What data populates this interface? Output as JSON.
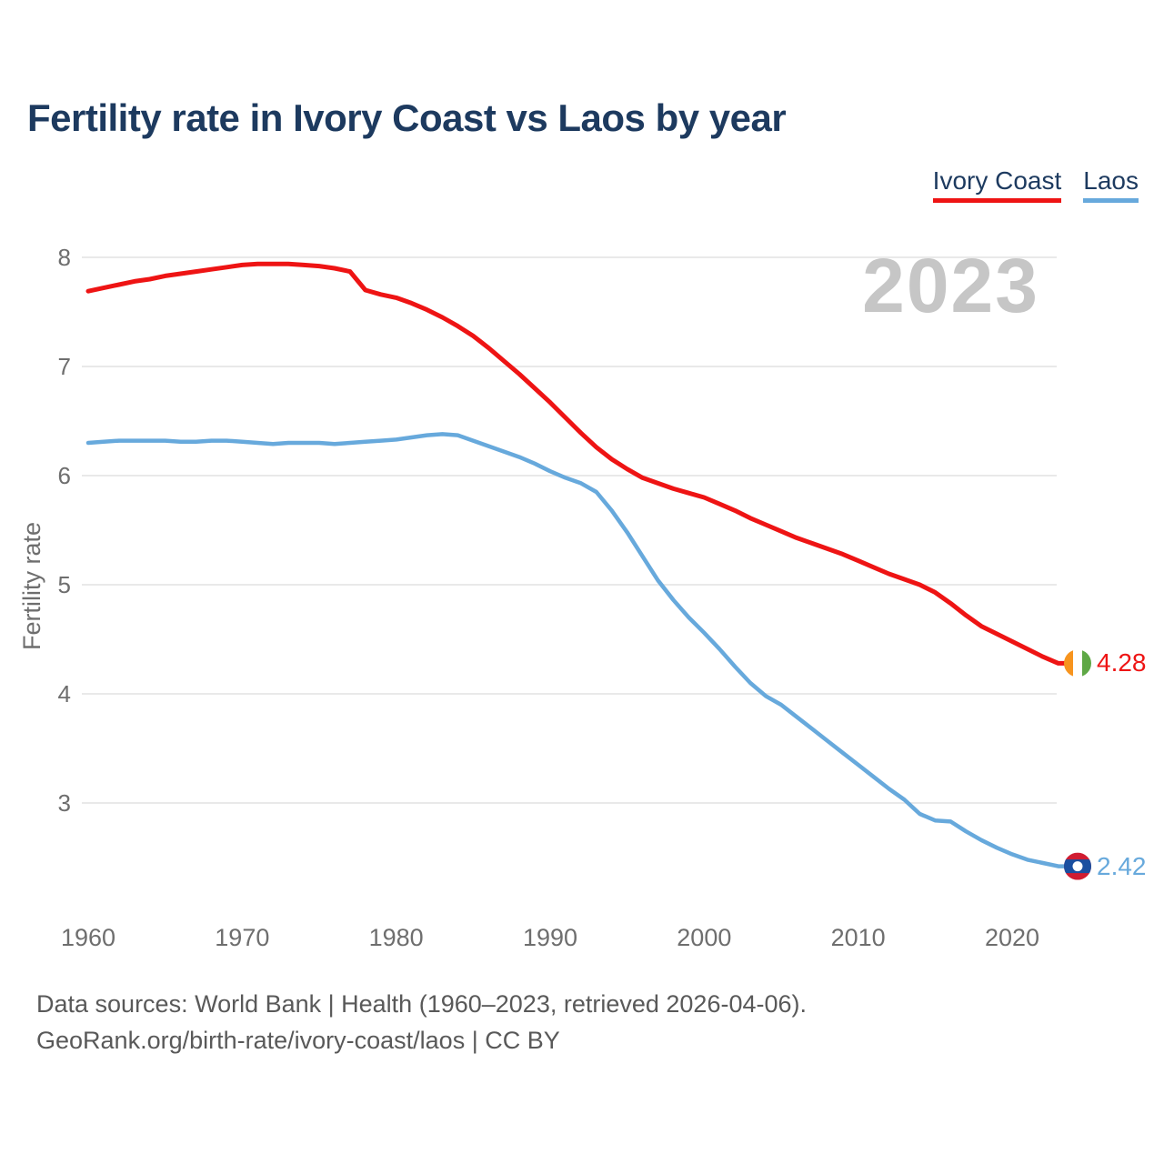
{
  "header": {
    "title": "Fertility rate in Ivory Coast vs Laos by year"
  },
  "legend": [
    {
      "label": "Ivory Coast",
      "color": "#ee1414"
    },
    {
      "label": "Laos",
      "color": "#67a9dc"
    }
  ],
  "watermark": "2023",
  "chart_data": {
    "type": "line",
    "title": "Fertility rate in Ivory Coast vs Laos by year",
    "xlabel": "",
    "ylabel": "Fertility rate",
    "x_ticks": [
      1960,
      1970,
      1980,
      1990,
      2000,
      2010,
      2020
    ],
    "y_ticks": [
      3,
      4,
      5,
      6,
      7,
      8
    ],
    "xlim": [
      1959.5,
      2024.5
    ],
    "ylim": [
      2.2,
      8.2
    ],
    "grid": "horizontal",
    "legend_position": "top-right",
    "x": [
      1960,
      1961,
      1962,
      1963,
      1964,
      1965,
      1966,
      1967,
      1968,
      1969,
      1970,
      1971,
      1972,
      1973,
      1974,
      1975,
      1976,
      1977,
      1978,
      1979,
      1980,
      1981,
      1982,
      1983,
      1984,
      1985,
      1986,
      1987,
      1988,
      1989,
      1990,
      1991,
      1992,
      1993,
      1994,
      1995,
      1996,
      1997,
      1998,
      1999,
      2000,
      2001,
      2002,
      2003,
      2004,
      2005,
      2006,
      2007,
      2008,
      2009,
      2010,
      2011,
      2012,
      2013,
      2014,
      2015,
      2016,
      2017,
      2018,
      2019,
      2020,
      2021,
      2022,
      2023
    ],
    "series": [
      {
        "name": "Ivory Coast",
        "color": "#ee1414",
        "flag": "ivory-coast",
        "end_label": "4.28",
        "end_value": 4.28,
        "values": [
          7.69,
          7.72,
          7.75,
          7.78,
          7.8,
          7.83,
          7.85,
          7.87,
          7.89,
          7.91,
          7.93,
          7.94,
          7.94,
          7.94,
          7.93,
          7.92,
          7.9,
          7.87,
          7.7,
          7.66,
          7.63,
          7.58,
          7.52,
          7.45,
          7.37,
          7.28,
          7.17,
          7.05,
          6.93,
          6.8,
          6.67,
          6.53,
          6.39,
          6.26,
          6.15,
          6.06,
          5.98,
          5.93,
          5.88,
          5.84,
          5.8,
          5.74,
          5.68,
          5.61,
          5.55,
          5.49,
          5.43,
          5.38,
          5.33,
          5.28,
          5.22,
          5.16,
          5.1,
          5.05,
          5.0,
          4.93,
          4.83,
          4.72,
          4.62,
          4.55,
          4.48,
          4.41,
          4.34,
          4.28
        ]
      },
      {
        "name": "Laos",
        "color": "#67a9dc",
        "flag": "laos",
        "end_label": "2.42",
        "end_value": 2.42,
        "values": [
          6.3,
          6.31,
          6.32,
          6.32,
          6.32,
          6.32,
          6.31,
          6.31,
          6.32,
          6.32,
          6.31,
          6.3,
          6.29,
          6.3,
          6.3,
          6.3,
          6.29,
          6.3,
          6.31,
          6.32,
          6.33,
          6.35,
          6.37,
          6.38,
          6.37,
          6.32,
          6.27,
          6.22,
          6.17,
          6.11,
          6.04,
          5.98,
          5.93,
          5.85,
          5.68,
          5.48,
          5.26,
          5.04,
          4.86,
          4.7,
          4.56,
          4.41,
          4.25,
          4.1,
          3.98,
          3.9,
          3.79,
          3.68,
          3.57,
          3.46,
          3.35,
          3.24,
          3.13,
          3.03,
          2.9,
          2.84,
          2.83,
          2.74,
          2.66,
          2.59,
          2.53,
          2.48,
          2.45,
          2.42
        ]
      }
    ]
  },
  "flag_colors": {
    "ivory_coast": {
      "orange": "#f7941e",
      "white": "#ffffff",
      "green": "#5fa846"
    },
    "laos": {
      "red": "#d01c31",
      "blue": "#1a4fa0",
      "white": "#ffffff"
    }
  },
  "footer": {
    "line1": "Data sources: World Bank | Health (1960–2023, retrieved 2026-04-06).",
    "line2": "GeoRank.org/birth-rate/ivory-coast/laos | CC BY"
  }
}
